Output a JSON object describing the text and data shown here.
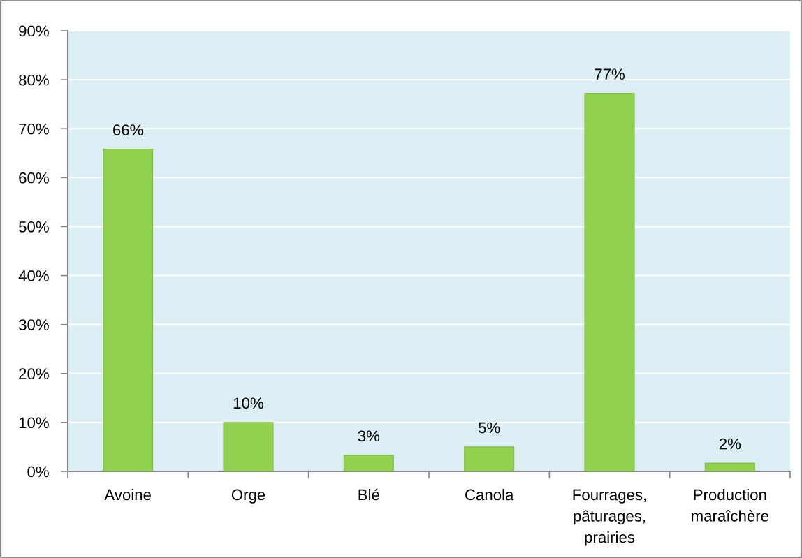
{
  "chart_data": {
    "type": "bar",
    "categories": [
      "Avoine",
      "Orge",
      "Blé",
      "Canola",
      "Fourrages,\npâturages,\nprairies",
      "Production\nmaraîchère"
    ],
    "values": [
      65.8,
      10,
      3.3,
      5,
      77.2,
      1.7
    ],
    "value_labels": [
      "66%",
      "10%",
      "3%",
      "5%",
      "77%",
      "2%"
    ],
    "color": "#92d050",
    "ylim": [
      0,
      90
    ],
    "yticks": [
      {
        "value": 0,
        "label": "0%"
      },
      {
        "value": 10,
        "label": "10%"
      },
      {
        "value": 20,
        "label": "20%"
      },
      {
        "value": 30,
        "label": "30%"
      },
      {
        "value": 40,
        "label": "40%"
      },
      {
        "value": 50,
        "label": "50%"
      },
      {
        "value": 60,
        "label": "60%"
      },
      {
        "value": 70,
        "label": "70%"
      },
      {
        "value": 80,
        "label": "80%"
      },
      {
        "value": 90,
        "label": "90%"
      }
    ],
    "grid": "y"
  }
}
